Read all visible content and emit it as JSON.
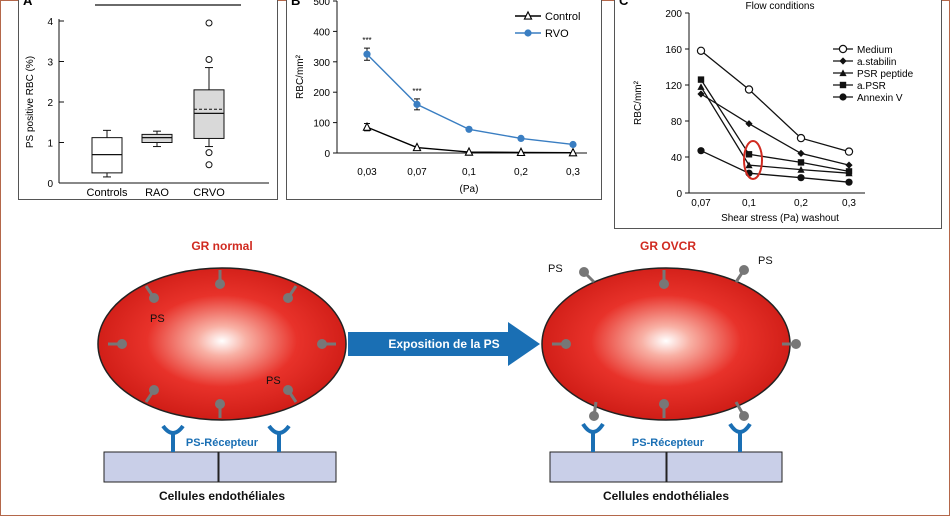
{
  "colors": {
    "frame": "#b4674a",
    "rbc_red": "#e0201a",
    "receptor_blue": "#1a6fb4",
    "endothelial_fill": "#c9cfe8",
    "arrow_blue": "#1a6fb4",
    "title_red": "#d02a20",
    "ps_grey": "#777777",
    "rvo_blue": "#3a7ec2"
  },
  "panel_labels": {
    "a": "A",
    "b": "B",
    "c": "C"
  },
  "chart_data": [
    {
      "type": "boxplot",
      "ylabel": "PS positive RBC (%)",
      "ylim": [
        0,
        4
      ],
      "yticks": [
        "0",
        "1",
        "2",
        "3",
        "4"
      ],
      "categories": [
        "Controls",
        "RAO",
        "CRVO"
      ],
      "boxes": [
        {
          "name": "Controls",
          "whisker_low": 0.15,
          "q1": 0.25,
          "median": 0.7,
          "q3": 1.12,
          "whisker_high": 1.3,
          "mean": null,
          "outliers": []
        },
        {
          "name": "RAO",
          "whisker_low": 0.9,
          "q1": 1.0,
          "median": 1.12,
          "q3": 1.2,
          "whisker_high": 1.28,
          "mean": null,
          "outliers": []
        },
        {
          "name": "CRVO",
          "whisker_low": 0.9,
          "q1": 1.1,
          "median": 1.72,
          "q3": 2.3,
          "whisker_high": 2.85,
          "mean": 1.82,
          "outliers": [
            0.45,
            0.75,
            3.05,
            3.95
          ]
        }
      ]
    },
    {
      "type": "line",
      "xlabel": "(Pa)",
      "ylabel": "RBC/mm²",
      "ylim": [
        0,
        500
      ],
      "yticks": [
        "0",
        "100",
        "200",
        "300",
        "400",
        "500"
      ],
      "categories": [
        "0,03",
        "0,07",
        "0,1",
        "0,2",
        "0,3"
      ],
      "series": [
        {
          "name": "Control",
          "marker": "open-triangle",
          "color": "#000000",
          "values": [
            85,
            18,
            3,
            2,
            1
          ],
          "errors": [
            12,
            0,
            0,
            0,
            0
          ]
        },
        {
          "name": "RVO",
          "marker": "filled-circle",
          "color": "#3a7ec2",
          "values": [
            325,
            160,
            78,
            48,
            28
          ],
          "errors": [
            20,
            18,
            0,
            0,
            0
          ]
        }
      ],
      "annotations": [
        "***",
        "***"
      ],
      "legend": "top-right"
    },
    {
      "type": "line",
      "title": "Flow conditions",
      "xlabel": "Shear stress (Pa) washout",
      "ylabel": "RBC/mm²",
      "ylim": [
        0,
        200
      ],
      "yticks": [
        "0",
        "40",
        "80",
        "120",
        "160",
        "200"
      ],
      "categories": [
        "0,07",
        "0,1",
        "0,2",
        "0,3"
      ],
      "series": [
        {
          "name": "Medium",
          "marker": "open-circle",
          "values": [
            158,
            115,
            61,
            46
          ]
        },
        {
          "name": "a.stabilin",
          "marker": "filled-diamond",
          "values": [
            110,
            77,
            44,
            31
          ]
        },
        {
          "name": "PSR peptide",
          "marker": "filled-triangle",
          "values": [
            118,
            31,
            26,
            22
          ]
        },
        {
          "name": "a.PSR",
          "marker": "filled-square",
          "values": [
            126,
            43,
            34,
            24
          ]
        },
        {
          "name": "Annexin V",
          "marker": "filled-circle",
          "values": [
            47,
            22,
            17,
            12
          ]
        }
      ],
      "legend": "top-right"
    }
  ],
  "diagram": {
    "left_title": "GR normal",
    "right_title": "GR OVCR",
    "arrow_label": "Exposition de la PS",
    "receptor_label": "PS-Récepteur",
    "cells_label": "Cellules endothéliales",
    "ps_label": "PS"
  }
}
